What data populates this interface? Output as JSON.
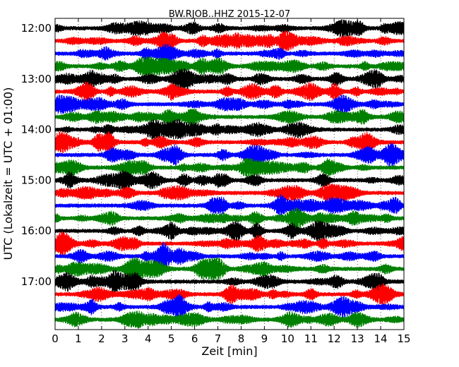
{
  "chart_data": {
    "type": "line",
    "title": "BW.RJOB..HHZ 2015-12-07",
    "xlabel": "Zeit  [min]",
    "ylabel": "UTC (Lokalzeit = UTC + 01:00)",
    "xlim": [
      0,
      15
    ],
    "x_ticks": [
      "0",
      "1",
      "2",
      "3",
      "4",
      "5",
      "6",
      "7",
      "8",
      "9",
      "10",
      "11",
      "12",
      "13",
      "14",
      "15"
    ],
    "y_ticks": [
      "12:00",
      "13:00",
      "14:00",
      "15:00",
      "16:00",
      "17:00"
    ],
    "grid": "vertical dotted at each minute",
    "trace_count": 24,
    "trace_interval_minutes": 15,
    "trace_colors": [
      "#000000",
      "#ff0000",
      "#0000ff",
      "#008000"
    ],
    "series": [
      {
        "start": "12:00",
        "color": "#000000"
      },
      {
        "start": "12:15",
        "color": "#ff0000"
      },
      {
        "start": "12:30",
        "color": "#0000ff"
      },
      {
        "start": "12:45",
        "color": "#008000"
      },
      {
        "start": "13:00",
        "color": "#000000"
      },
      {
        "start": "13:15",
        "color": "#ff0000"
      },
      {
        "start": "13:30",
        "color": "#0000ff"
      },
      {
        "start": "13:45",
        "color": "#008000"
      },
      {
        "start": "14:00",
        "color": "#000000"
      },
      {
        "start": "14:15",
        "color": "#ff0000"
      },
      {
        "start": "14:30",
        "color": "#0000ff"
      },
      {
        "start": "14:45",
        "color": "#008000"
      },
      {
        "start": "15:00",
        "color": "#000000"
      },
      {
        "start": "15:15",
        "color": "#ff0000"
      },
      {
        "start": "15:30",
        "color": "#0000ff"
      },
      {
        "start": "15:45",
        "color": "#008000"
      },
      {
        "start": "16:00",
        "color": "#000000"
      },
      {
        "start": "16:15",
        "color": "#ff0000"
      },
      {
        "start": "16:30",
        "color": "#0000ff"
      },
      {
        "start": "16:45",
        "color": "#008000"
      },
      {
        "start": "17:00",
        "color": "#000000"
      },
      {
        "start": "17:15",
        "color": "#ff0000"
      },
      {
        "start": "17:30",
        "color": "#0000ff"
      },
      {
        "start": "17:45",
        "color": "#008000"
      }
    ]
  }
}
